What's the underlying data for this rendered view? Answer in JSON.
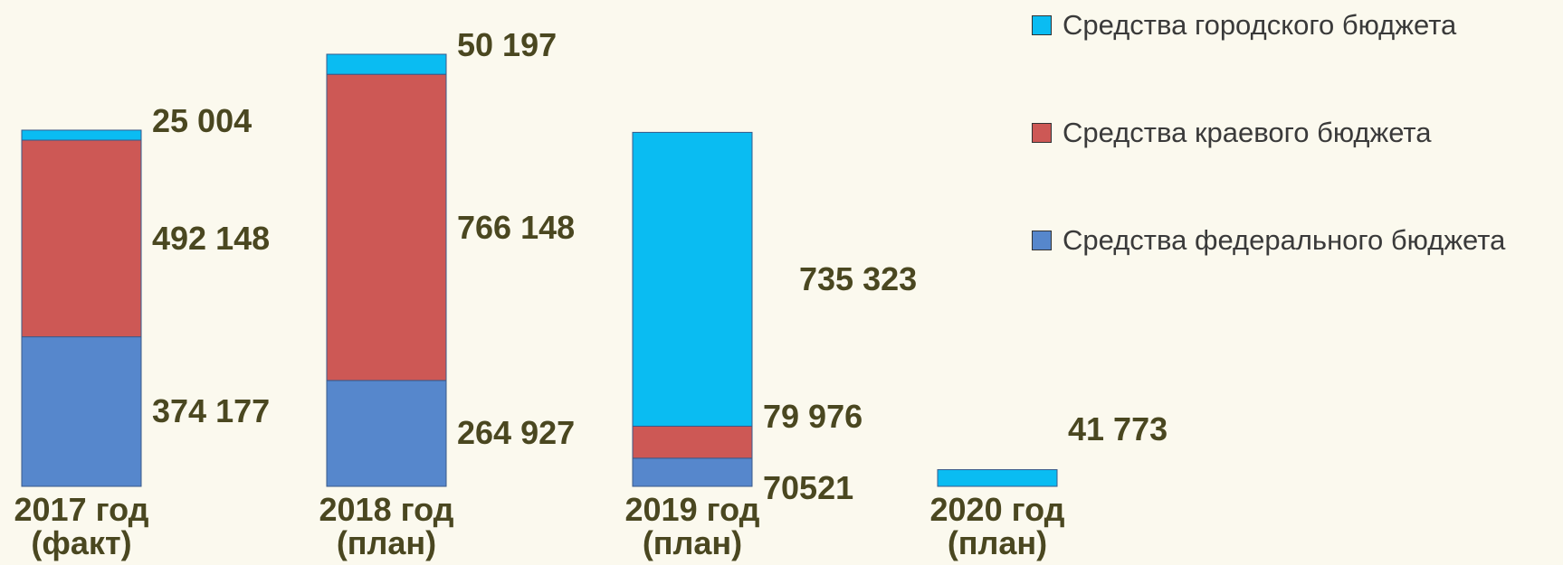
{
  "chart_data": {
    "type": "stacked_bar",
    "categories": [
      "2017 год (факт)",
      "2018 год (план)",
      "2019 год (план)",
      "2020 год (план)"
    ],
    "series": [
      {
        "name": "Средства федерального бюджета",
        "color": "#5687cc",
        "values": [
          374177,
          264927,
          70521,
          null
        ],
        "value_labels": [
          "374 177",
          "264 927",
          "70521",
          null
        ]
      },
      {
        "name": "Средства краевого бюджета",
        "color": "#cd5855",
        "values": [
          492148,
          766148,
          79976,
          null
        ],
        "value_labels": [
          "492 148",
          "766 148",
          "79 976",
          null
        ]
      },
      {
        "name": "Средства городского бюджета",
        "color": "#0abcf2",
        "values": [
          25004,
          50197,
          735323,
          41773
        ],
        "value_labels": [
          "25 004",
          "50 197",
          "735 323",
          "41 773"
        ]
      }
    ]
  }
}
